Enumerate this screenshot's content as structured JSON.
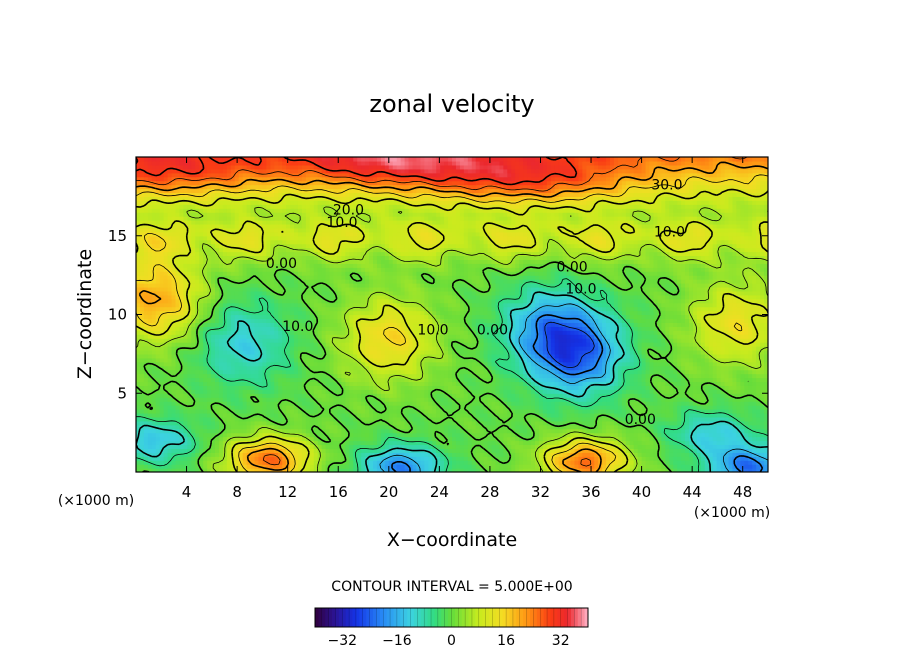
{
  "chart_data": {
    "type": "heatmap",
    "title": "zonal velocity",
    "xlabel": "X−coordinate",
    "ylabel": "Z−coordinate",
    "x_unit": "(×1000 m)",
    "y_unit": "(×1000 m)",
    "xlim": [
      0,
      50
    ],
    "ylim": [
      0,
      20
    ],
    "x_ticks": [
      4,
      8,
      12,
      16,
      20,
      24,
      28,
      32,
      36,
      40,
      44,
      48
    ],
    "x_tick_labels": [
      "4",
      "8",
      "12",
      "16",
      "20",
      "24",
      "28",
      "32",
      "36",
      "40",
      "44",
      "48"
    ],
    "y_ticks": [
      5,
      10,
      15
    ],
    "y_tick_labels": [
      "5",
      "10",
      "15"
    ],
    "contour_interval_text": "CONTOUR INTERVAL = 5.000E+00",
    "contour_interval": 5,
    "colorbar": {
      "range": [
        -40,
        40
      ],
      "ticks": [
        -32,
        -16,
        0,
        16,
        32
      ],
      "tick_labels": [
        "−32",
        "−16",
        "0",
        "16",
        "32"
      ]
    },
    "contour_labels": [
      {
        "text": "30.0",
        "x": 42,
        "z": 18.2
      },
      {
        "text": "20.0",
        "x": 16.8,
        "z": 16.6
      },
      {
        "text": "10.0",
        "x": 16.3,
        "z": 15.8
      },
      {
        "text": "10.0",
        "x": 42.2,
        "z": 15.2
      },
      {
        "text": "0.00",
        "x": 11.5,
        "z": 13.2
      },
      {
        "text": "0.00",
        "x": 34.5,
        "z": 13.0
      },
      {
        "text": "10.0",
        "x": 35.2,
        "z": 11.6
      },
      {
        "text": "10.0",
        "x": 12.8,
        "z": 9.2
      },
      {
        "text": "10.0",
        "x": 23.5,
        "z": 9.0
      },
      {
        "text": "0.00",
        "x": 28.2,
        "z": 9.0
      },
      {
        "text": "0.00",
        "x": 39.9,
        "z": 3.3
      }
    ],
    "features": [
      {
        "kind": "max",
        "x": 31,
        "z": 18.5,
        "value": 33
      },
      {
        "kind": "max",
        "x": 20,
        "z": 19.5,
        "value": 30
      },
      {
        "kind": "max",
        "x": 2,
        "z": 19.0,
        "value": 28
      },
      {
        "kind": "min",
        "x": 8.5,
        "z": 8.2,
        "value": -14
      },
      {
        "kind": "min",
        "x": 35.0,
        "z": 7.5,
        "value": -26
      },
      {
        "kind": "min",
        "x": 32.5,
        "z": 9.2,
        "value": -18
      },
      {
        "kind": "max",
        "x": 20.0,
        "z": 8.5,
        "value": 18
      },
      {
        "kind": "max",
        "x": 1.5,
        "z": 11.0,
        "value": 24
      },
      {
        "kind": "max",
        "x": 47.5,
        "z": 9.5,
        "value": 16
      },
      {
        "kind": "max",
        "x": 10.5,
        "z": 0.8,
        "value": 30
      },
      {
        "kind": "max",
        "x": 35.5,
        "z": 0.7,
        "value": 30
      },
      {
        "kind": "min",
        "x": 21.0,
        "z": 0.3,
        "value": -24
      },
      {
        "kind": "min",
        "x": 48.5,
        "z": 0.3,
        "value": -26
      },
      {
        "kind": "min",
        "x": 1.5,
        "z": 2.0,
        "value": -16
      },
      {
        "kind": "min",
        "x": 45.5,
        "z": 2.5,
        "value": -14
      }
    ]
  }
}
